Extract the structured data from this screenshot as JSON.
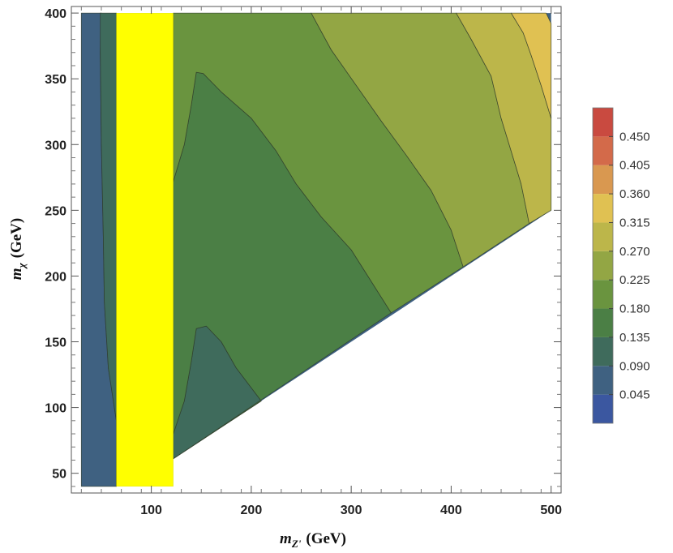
{
  "chart_data": {
    "type": "contour",
    "title": "",
    "xlabel": {
      "var": "m",
      "sub": "Z'",
      "unit": "(GeV)"
    },
    "ylabel": {
      "var": "m",
      "sub": "χ",
      "unit": "(GeV)"
    },
    "xlim": [
      20,
      510
    ],
    "ylim": [
      35,
      405
    ],
    "x_ticks": [
      100,
      200,
      300,
      400,
      500
    ],
    "y_ticks": [
      50,
      100,
      150,
      200,
      250,
      300,
      350,
      400
    ],
    "excluded_band": {
      "x": [
        65,
        122
      ],
      "y": [
        40,
        400
      ],
      "color": "#ffff00"
    },
    "domain_boundary": [
      [
        30,
        40
      ],
      [
        122,
        40
      ],
      [
        122,
        61
      ],
      [
        500,
        250
      ],
      [
        500,
        400
      ],
      [
        30,
        400
      ]
    ],
    "colorbar": {
      "ticks": [
        "0.045",
        "0.090",
        "0.135",
        "0.180",
        "0.225",
        "0.270",
        "0.315",
        "0.360",
        "0.405",
        "0.450"
      ],
      "range": [
        0,
        0.495
      ],
      "colors": [
        "#3b57a0",
        "#3f6181",
        "#3f6b5c",
        "#4b7f45",
        "#6a943f",
        "#93a644",
        "#bcb64a",
        "#e0c152",
        "#d99850",
        "#d36a4a",
        "#c94a40"
      ]
    },
    "levels": [
      {
        "min": 0.045,
        "max": 0.09,
        "color": "#3f6181",
        "polygon": [
          [
            30,
            40
          ],
          [
            65,
            40
          ],
          [
            65,
            90
          ],
          [
            57,
            130
          ],
          [
            53,
            180
          ],
          [
            52,
            230
          ],
          [
            50,
            300
          ],
          [
            49,
            370
          ],
          [
            50,
            400
          ],
          [
            30,
            400
          ]
        ]
      },
      {
        "min": 0.09,
        "max": 0.135,
        "color": "#3f6b5c",
        "polygon": [
          [
            65,
            40
          ],
          [
            65,
            400
          ],
          [
            49,
            400
          ],
          [
            49,
            370
          ],
          [
            50,
            300
          ],
          [
            52,
            230
          ],
          [
            53,
            180
          ],
          [
            57,
            130
          ],
          [
            65,
            90
          ]
        ]
      },
      {
        "min": 0.09,
        "max": 0.135,
        "color": "#3f6b5c",
        "polygon": [
          [
            122,
            61
          ],
          [
            122,
            80
          ],
          [
            133,
            105
          ],
          [
            140,
            135
          ],
          [
            145,
            160
          ],
          [
            155,
            162
          ],
          [
            170,
            150
          ],
          [
            185,
            130
          ],
          [
            210,
            105
          ]
        ]
      },
      {
        "min": 0.135,
        "max": 0.18,
        "color": "#4b7f45",
        "polygon": [
          [
            122,
            61
          ],
          [
            210,
            105
          ],
          [
            185,
            130
          ],
          [
            170,
            150
          ],
          [
            155,
            162
          ],
          [
            145,
            160
          ],
          [
            140,
            135
          ],
          [
            133,
            105
          ],
          [
            122,
            80
          ],
          [
            122,
            272
          ],
          [
            133,
            300
          ],
          [
            140,
            330
          ],
          [
            145,
            355
          ],
          [
            152,
            354
          ],
          [
            170,
            340
          ],
          [
            200,
            320
          ],
          [
            225,
            295
          ],
          [
            245,
            270
          ],
          [
            270,
            245
          ],
          [
            300,
            220
          ],
          [
            340,
            172
          ]
        ]
      },
      {
        "min": 0.18,
        "max": 0.225,
        "color": "#6a943f",
        "polygon": [
          [
            122,
            400
          ],
          [
            260,
            400
          ],
          [
            280,
            372
          ],
          [
            305,
            345
          ],
          [
            330,
            318
          ],
          [
            355,
            292
          ],
          [
            380,
            265
          ],
          [
            400,
            235
          ],
          [
            412,
            207
          ],
          [
            340,
            172
          ],
          [
            300,
            220
          ],
          [
            270,
            245
          ],
          [
            245,
            270
          ],
          [
            225,
            295
          ],
          [
            200,
            320
          ],
          [
            170,
            340
          ],
          [
            152,
            354
          ],
          [
            145,
            355
          ],
          [
            140,
            330
          ],
          [
            133,
            300
          ],
          [
            122,
            272
          ]
        ]
      },
      {
        "min": 0.225,
        "max": 0.27,
        "color": "#93a644",
        "polygon": [
          [
            260,
            400
          ],
          [
            405,
            400
          ],
          [
            420,
            380
          ],
          [
            440,
            352
          ],
          [
            450,
            320
          ],
          [
            460,
            295
          ],
          [
            470,
            270
          ],
          [
            478,
            240
          ],
          [
            412,
            207
          ],
          [
            400,
            235
          ],
          [
            380,
            265
          ],
          [
            355,
            292
          ],
          [
            330,
            318
          ],
          [
            305,
            345
          ],
          [
            280,
            372
          ]
        ]
      },
      {
        "min": 0.27,
        "max": 0.315,
        "color": "#bcb64a",
        "polygon": [
          [
            405,
            400
          ],
          [
            460,
            400
          ],
          [
            472,
            385
          ],
          [
            480,
            368
          ],
          [
            490,
            345
          ],
          [
            500,
            320
          ],
          [
            500,
            250
          ],
          [
            478,
            240
          ],
          [
            470,
            270
          ],
          [
            460,
            295
          ],
          [
            450,
            320
          ],
          [
            440,
            352
          ],
          [
            420,
            380
          ]
        ]
      },
      {
        "min": 0.315,
        "max": 0.36,
        "color": "#e0c152",
        "polygon": [
          [
            460,
            400
          ],
          [
            495,
            400
          ],
          [
            500,
            392
          ],
          [
            500,
            320
          ],
          [
            490,
            345
          ],
          [
            480,
            368
          ],
          [
            472,
            385
          ]
        ]
      }
    ]
  }
}
